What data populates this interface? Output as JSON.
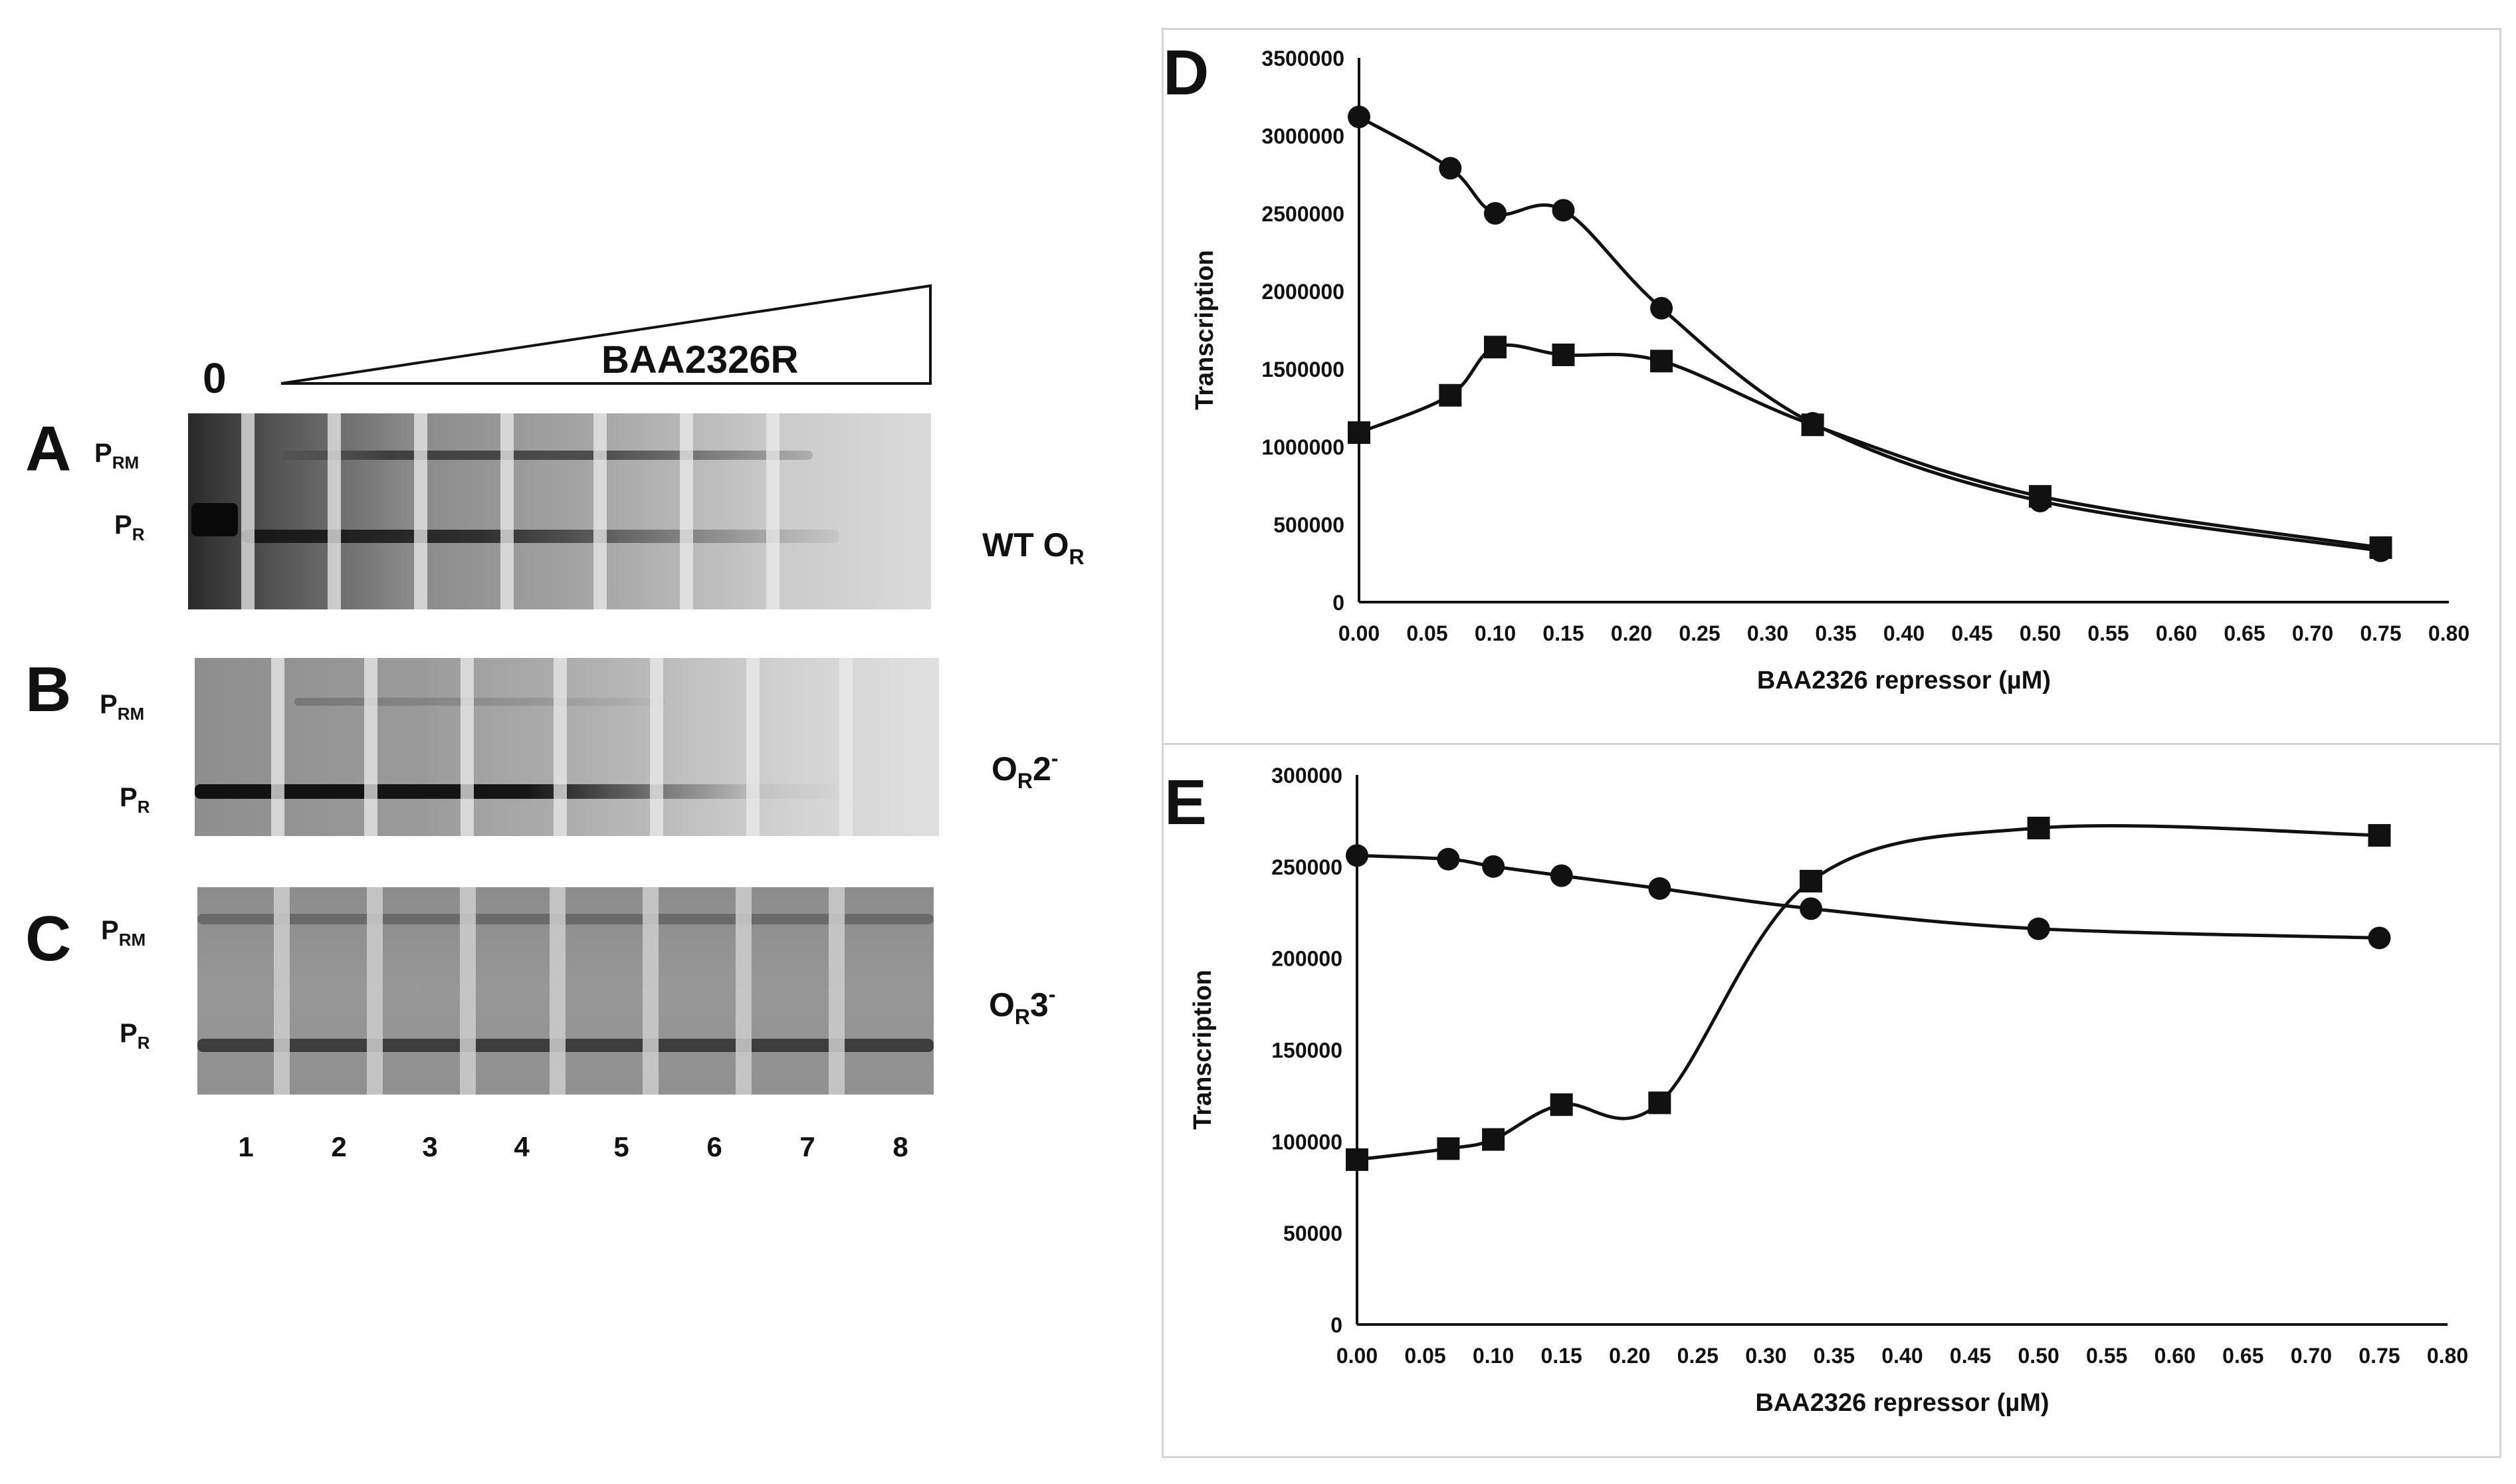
{
  "figure": {
    "panels": {
      "a": "A",
      "b": "B",
      "c": "C",
      "d": "D",
      "e": "E"
    },
    "titration": {
      "zero": "0",
      "protein": "BAA2326R"
    },
    "gel_labels": {
      "prm": "P",
      "prm_sub": "RM",
      "pr": "P",
      "pr_sub": "R"
    },
    "conditions": {
      "a": {
        "main": "WT O",
        "sub": "R",
        "sup": ""
      },
      "b": {
        "main": "O",
        "sub": "R",
        "after": "2",
        "sup": "-"
      },
      "c": {
        "main": "O",
        "sub": "R",
        "after": "3",
        "sup": "-"
      }
    },
    "lanes": [
      "1",
      "2",
      "3",
      "4",
      "5",
      "6",
      "7",
      "8"
    ]
  },
  "chart_data": [
    {
      "panel": "D",
      "type": "line",
      "title": "",
      "xlabel": "BAA2326 repressor (µM)",
      "ylabel": "Transcription",
      "xlim": [
        0,
        0.8
      ],
      "ylim": [
        0,
        3500000
      ],
      "xticks": [
        "0.00",
        "0.05",
        "0.10",
        "0.15",
        "0.20",
        "0.25",
        "0.30",
        "0.35",
        "0.40",
        "0.45",
        "0.50",
        "0.55",
        "0.60",
        "0.65",
        "0.70",
        "0.75",
        "0.80"
      ],
      "yticks": [
        "0",
        "500000",
        "1000000",
        "1500000",
        "2000000",
        "2500000",
        "3000000",
        "3500000"
      ],
      "x": [
        0,
        0.067,
        0.1,
        0.15,
        0.222,
        0.333,
        0.5,
        0.75
      ],
      "series": [
        {
          "name": "circle",
          "marker": "circle",
          "values": [
            3120000,
            2790000,
            2500000,
            2520000,
            1890000,
            1150000,
            650000,
            330000
          ]
        },
        {
          "name": "square",
          "marker": "square",
          "values": [
            1090000,
            1330000,
            1640000,
            1590000,
            1550000,
            1140000,
            680000,
            350000
          ]
        }
      ]
    },
    {
      "panel": "E",
      "type": "line",
      "title": "",
      "xlabel": "BAA2326 repressor (µM)",
      "ylabel": "Transcription",
      "xlim": [
        0,
        0.8
      ],
      "ylim": [
        0,
        300000
      ],
      "xticks": [
        "0.00",
        "0.05",
        "0.10",
        "0.15",
        "0.20",
        "0.25",
        "0.30",
        "0.35",
        "0.40",
        "0.45",
        "0.50",
        "0.55",
        "0.60",
        "0.65",
        "0.70",
        "0.75",
        "0.80"
      ],
      "yticks": [
        "0",
        "50000",
        "100000",
        "150000",
        "200000",
        "250000",
        "300000"
      ],
      "x": [
        0,
        0.067,
        0.1,
        0.15,
        0.222,
        0.333,
        0.5,
        0.75
      ],
      "series": [
        {
          "name": "circle",
          "marker": "circle",
          "values": [
            256000,
            254000,
            250000,
            245000,
            238000,
            227000,
            216000,
            211000
          ]
        },
        {
          "name": "square",
          "marker": "square",
          "values": [
            90000,
            96000,
            101000,
            120000,
            121000,
            242000,
            271000,
            267000
          ]
        }
      ]
    }
  ]
}
